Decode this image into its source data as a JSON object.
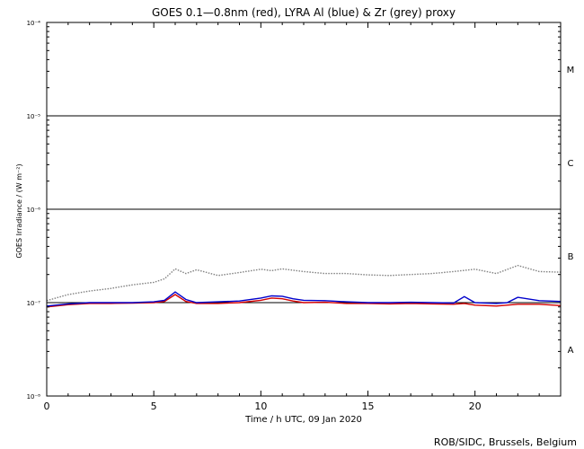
{
  "chart_data": {
    "type": "line",
    "title": "GOES 0.1—0.8nm (red), LYRA Al (blue) & Zr (grey) proxy",
    "xlabel": "Time / h UTC, 09 Jan 2020",
    "ylabel": "GOES Irradiance / (W m⁻²)",
    "xlim": [
      0,
      24
    ],
    "ylim": [
      1e-08,
      0.0001
    ],
    "yscale": "log",
    "x_ticks": [
      0,
      5,
      10,
      15,
      20
    ],
    "y_ticks": [
      {
        "value": 1e-08,
        "label": "10⁻⁸"
      },
      {
        "value": 1e-07,
        "label": "10⁻⁷"
      },
      {
        "value": 1e-06,
        "label": "10⁻⁶"
      },
      {
        "value": 1e-05,
        "label": "10⁻⁵"
      },
      {
        "value": 0.0001,
        "label": "10⁻⁴"
      }
    ],
    "reference_lines": [
      1e-07,
      1e-06,
      1e-05
    ],
    "flare_classes": [
      {
        "label": "M",
        "value": 3.16e-05
      },
      {
        "label": "C",
        "value": 3.16e-06
      },
      {
        "label": "B",
        "value": 3.16e-07
      },
      {
        "label": "A",
        "value": 3.16e-08
      }
    ],
    "series": [
      {
        "color": "#d40000",
        "x": [
          0,
          1,
          2,
          3,
          4,
          5,
          5.5,
          6,
          6.5,
          7,
          8,
          9,
          10,
          10.5,
          11,
          11.5,
          12,
          13,
          14,
          15,
          16,
          17,
          18,
          19,
          19.5,
          20,
          21,
          22,
          23,
          24
        ],
        "values": [
          9e-08,
          9.5e-08,
          9.8e-08,
          9.8e-08,
          9.9e-08,
          1e-07,
          1.03e-07,
          1.22e-07,
          1.03e-07,
          9.8e-08,
          9.8e-08,
          1e-07,
          1.06e-07,
          1.12e-07,
          1.1e-07,
          1.04e-07,
          1e-07,
          1.01e-07,
          9.8e-08,
          9.8e-08,
          9.7e-08,
          9.8e-08,
          9.7e-08,
          9.6e-08,
          9.8e-08,
          9.4e-08,
          9.2e-08,
          9.6e-08,
          9.6e-08,
          9.3e-08
        ]
      },
      {
        "color": "#0000cc",
        "x": [
          0,
          1,
          2,
          3,
          4,
          5,
          5.5,
          6,
          6.5,
          7,
          8,
          9,
          10,
          10.5,
          11,
          11.5,
          12,
          13,
          14,
          15,
          16,
          17,
          18,
          19,
          19.5,
          20,
          21,
          21.5,
          22,
          23,
          24
        ],
        "values": [
          9.2e-08,
          9.7e-08,
          1e-07,
          1e-07,
          1e-07,
          1.02e-07,
          1.06e-07,
          1.3e-07,
          1.08e-07,
          1e-07,
          1.02e-07,
          1.04e-07,
          1.12e-07,
          1.18e-07,
          1.17e-07,
          1.1e-07,
          1.06e-07,
          1.05e-07,
          1.02e-07,
          1e-07,
          1e-07,
          1.01e-07,
          1e-07,
          9.9e-08,
          1.16e-07,
          1e-07,
          9.8e-08,
          1e-07,
          1.14e-07,
          1.05e-07,
          1.03e-07
        ]
      },
      {
        "color": "#808080",
        "x": [
          0,
          1,
          2,
          3,
          4,
          5,
          5.5,
          6,
          6.5,
          7,
          8,
          9,
          10,
          10.5,
          11,
          12,
          13,
          14,
          15,
          16,
          17,
          18,
          19,
          20,
          21,
          22,
          23,
          24
        ],
        "values": [
          1.05e-07,
          1.22e-07,
          1.33e-07,
          1.42e-07,
          1.55e-07,
          1.65e-07,
          1.8e-07,
          2.3e-07,
          2.05e-07,
          2.25e-07,
          1.95e-07,
          2.1e-07,
          2.28e-07,
          2.2e-07,
          2.3e-07,
          2.15e-07,
          2.05e-07,
          2.05e-07,
          1.98e-07,
          1.95e-07,
          2e-07,
          2.05e-07,
          2.15e-07,
          2.28e-07,
          2.05e-07,
          2.5e-07,
          2.15e-07,
          2.12e-07
        ]
      }
    ]
  },
  "footer": {
    "credit": "ROB/SIDC, Brussels, Belgium"
  }
}
